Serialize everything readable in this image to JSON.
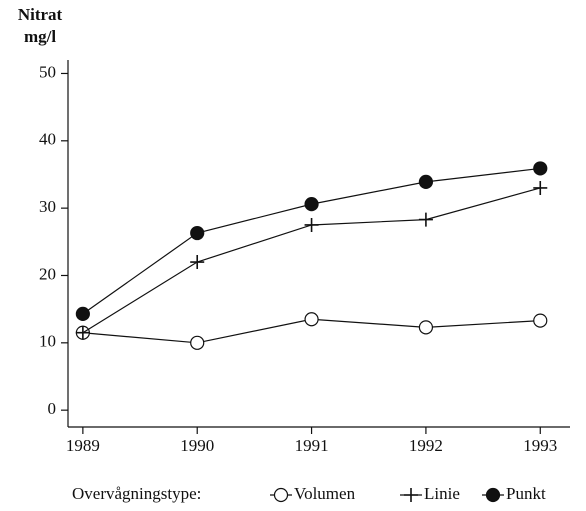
{
  "chart_data": {
    "type": "line",
    "y_label_lines": [
      "Nitrat",
      "mg/l"
    ],
    "legend_title": "Overvågningstype:",
    "x": [
      1989,
      1990,
      1991,
      1992,
      1993
    ],
    "xlim": [
      1988.87,
      1993.26
    ],
    "xticks": [
      1989,
      1990,
      1991,
      1992,
      1993
    ],
    "ylim": [
      -2.5,
      52
    ],
    "yticks": [
      0,
      10,
      20,
      30,
      40,
      50
    ],
    "series": [
      {
        "name": "Volumen",
        "color": "#111111",
        "marker": "open-circle",
        "values": [
          11.5,
          10,
          13.5,
          12.3,
          13.3
        ]
      },
      {
        "name": "Linie",
        "color": "#111111",
        "marker": "plus",
        "values": [
          11.5,
          22,
          27.5,
          28.3,
          33
        ]
      },
      {
        "name": "Punkt",
        "color": "#111111",
        "marker": "filled-circle",
        "values": [
          14.3,
          26.3,
          30.6,
          33.9,
          35.9
        ]
      }
    ]
  }
}
